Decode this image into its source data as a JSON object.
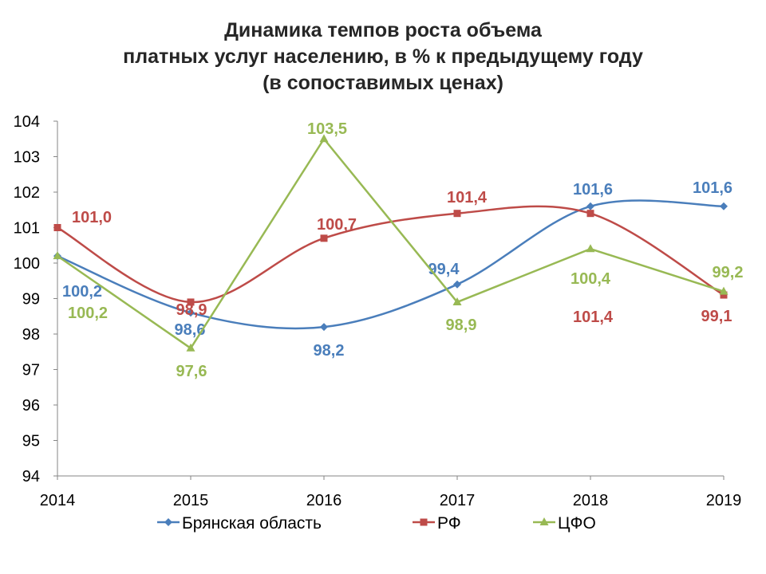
{
  "chart_data": {
    "type": "line",
    "title_lines": [
      "Динамика темпов роста объема",
      "платных услуг населению, в % к предыдущему году",
      "(в сопоставимых ценах)"
    ],
    "xlabel": "",
    "ylabel": "",
    "categories": [
      "2014",
      "2015",
      "2016",
      "2017",
      "2018",
      "2019"
    ],
    "ylim": [
      94,
      104
    ],
    "yticks": [
      "94",
      "95",
      "96",
      "97",
      "98",
      "99",
      "100",
      "101",
      "102",
      "103",
      "104"
    ],
    "grid": false,
    "legend_position": "bottom",
    "series": [
      {
        "name": "Брянская область",
        "color": "#4a7ebb",
        "marker": "diamond",
        "smooth": true,
        "values": [
          100.2,
          98.6,
          98.2,
          99.4,
          101.6,
          101.6
        ],
        "labels": [
          "100,2",
          "98,6",
          "98,2",
          "99,4",
          "101,6",
          "101,6"
        ]
      },
      {
        "name": "РФ",
        "color": "#be4b48",
        "marker": "square",
        "smooth": true,
        "values": [
          101.0,
          98.9,
          100.7,
          101.4,
          101.4,
          99.1
        ],
        "labels": [
          "101,0",
          "98,9",
          "100,7",
          "101,4",
          "101,4",
          "99,1"
        ]
      },
      {
        "name": "ЦФО",
        "color": "#98b954",
        "marker": "triangle",
        "smooth": false,
        "values": [
          100.2,
          97.6,
          103.5,
          98.9,
          100.4,
          99.2
        ],
        "labels": [
          "100,2",
          "97,6",
          "103,5",
          "98,9",
          "100,4",
          "99,2"
        ]
      }
    ]
  }
}
